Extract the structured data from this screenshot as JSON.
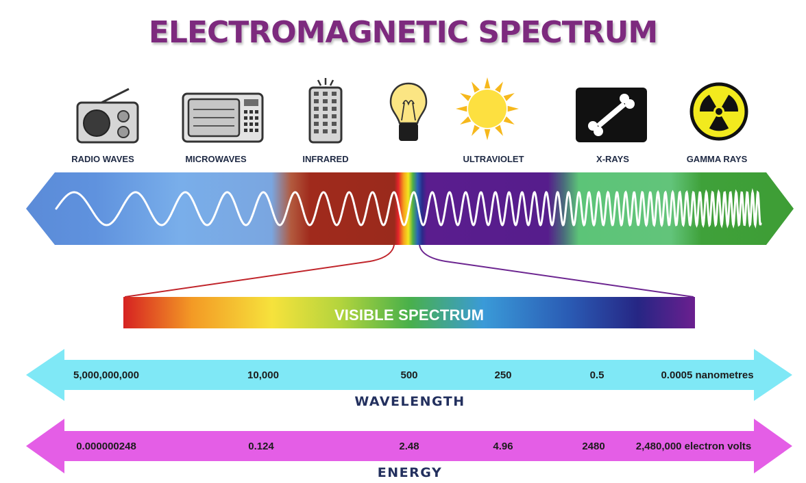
{
  "title": "ELECTROMAGNETIC SPECTRUM",
  "bands": [
    {
      "label": "RADIO WAVES",
      "icon": "radio-icon"
    },
    {
      "label": "MICROWAVES",
      "icon": "microwave-oven-icon"
    },
    {
      "label": "INFRARED",
      "icon": "remote-control-icon"
    },
    {
      "label": "",
      "icon": "light-bulb-icon"
    },
    {
      "label": "ULTRAVIOLET",
      "icon": "sun-icon"
    },
    {
      "label": "X-RAYS",
      "icon": "xray-bone-icon"
    },
    {
      "label": "GAMMA RAYS",
      "icon": "radiation-icon"
    }
  ],
  "visible_spectrum": {
    "label": "VISIBLE SPECTRUM"
  },
  "wavelength": {
    "title": "WAVELENGTH",
    "ticks": [
      "5,000,000,000",
      "10,000",
      "500",
      "250",
      "0.5",
      "0.0005 nanometres"
    ],
    "color": "#7fe8f6"
  },
  "energy": {
    "title": "ENERGY",
    "ticks": [
      "0.000000248",
      "0.124",
      "2.48",
      "4.96",
      "2480",
      "2,480,000 electron volts"
    ],
    "color": "#e45ee6"
  },
  "colors": {
    "title": "#7d2a7e",
    "radio": "#5b8bd8",
    "microwave": "#79aeea",
    "infrared": "#a02a1c",
    "ultraviolet": "#561d8c",
    "xray": "#5cc478",
    "gamma": "#3fa13a"
  }
}
